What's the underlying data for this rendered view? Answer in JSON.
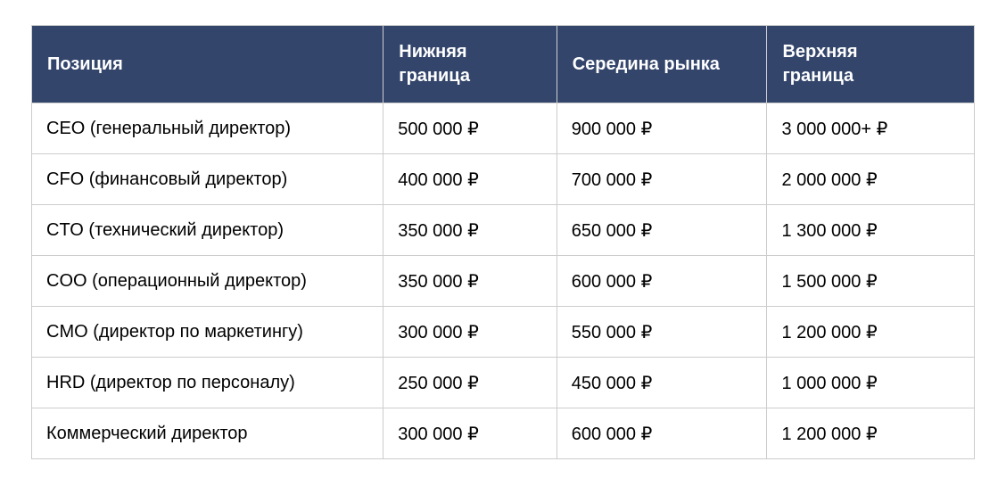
{
  "page": {
    "background_color": "#ffffff"
  },
  "colors": {
    "header_bg": "#33456b",
    "header_text": "#ffffff",
    "body_text": "#000000",
    "grid_border": "#cccccc"
  },
  "table": {
    "header": {
      "columns": [
        "Позиция",
        "Нижняя\nграница",
        "Середина рынка",
        "Верхняя\nграница"
      ]
    },
    "rows": [
      [
        "CEO (генеральный директор)",
        "500 000 ₽",
        "900 000 ₽",
        "3 000 000+ ₽"
      ],
      [
        "CFO (финансовый директор)",
        "400 000 ₽",
        "700 000 ₽",
        "2 000 000 ₽"
      ],
      [
        "CTO (технический директор)",
        "350 000 ₽",
        "650 000 ₽",
        "1 300 000 ₽"
      ],
      [
        "COO (операционный директор)",
        "350 000 ₽",
        "600 000 ₽",
        "1 500 000 ₽"
      ],
      [
        "CMO (директор по маркетингу)",
        "300 000 ₽",
        "550 000 ₽",
        "1 200 000 ₽"
      ],
      [
        "HRD (директор по персоналу)",
        "250 000 ₽",
        "450 000 ₽",
        "1 000 000 ₽"
      ],
      [
        "Коммерческий директор",
        "300 000 ₽",
        "600 000 ₽",
        "1 200 000 ₽"
      ]
    ],
    "currency_symbol": "₽"
  },
  "chart_data": {
    "type": "table",
    "columns": [
      "Позиция",
      "Нижняя граница",
      "Середина рынка",
      "Верхняя граница"
    ],
    "rows": [
      [
        "CEO (генеральный директор)",
        "500 000 ₽",
        "900 000 ₽",
        "3 000 000+ ₽"
      ],
      [
        "CFO (финансовый директор)",
        "400 000 ₽",
        "700 000 ₽",
        "2 000 000 ₽"
      ],
      [
        "CTO (технический директор)",
        "350 000 ₽",
        "650 000 ₽",
        "1 300 000 ₽"
      ],
      [
        "COO (операционный директор)",
        "350 000 ₽",
        "600 000 ₽",
        "1 500 000 ₽"
      ],
      [
        "CMO (директор по маркетингу)",
        "300 000 ₽",
        "550 000 ₽",
        "1 200 000 ₽"
      ],
      [
        "HRD (директор по персоналу)",
        "250 000 ₽",
        "450 000 ₽",
        "1 000 000 ₽"
      ],
      [
        "Коммерческий директор",
        "300 000 ₽",
        "600 000 ₽",
        "1 200 000 ₽"
      ]
    ]
  }
}
